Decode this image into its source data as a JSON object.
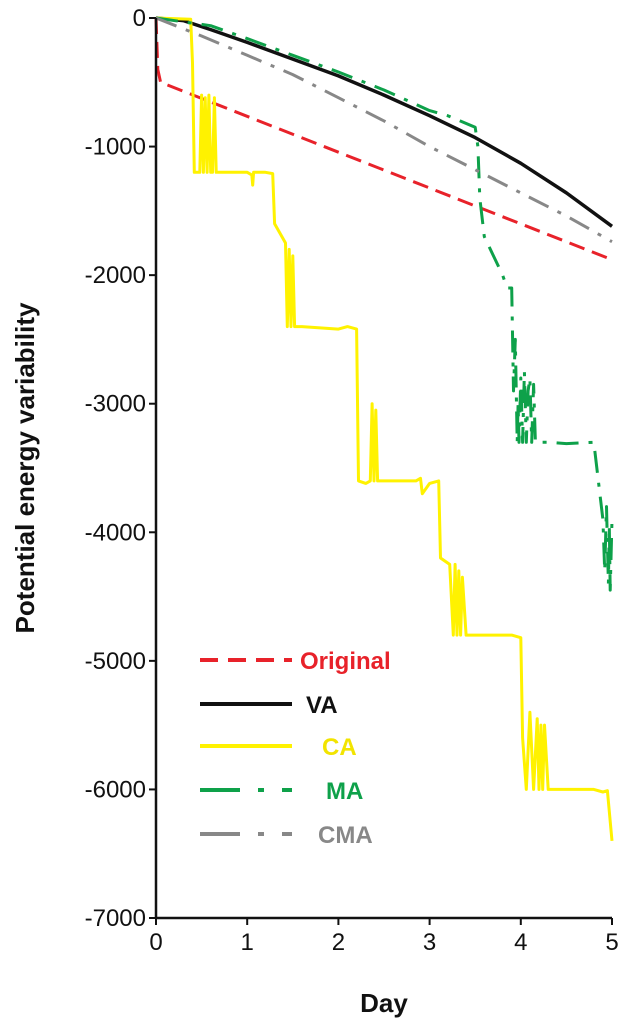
{
  "chart_data": {
    "type": "line",
    "xlabel": "Day",
    "ylabel": "Potential energy variability",
    "xlim": [
      0,
      5
    ],
    "ylim": [
      -7000,
      0
    ],
    "x_ticks": [
      "0",
      "1",
      "2",
      "3",
      "4",
      "5"
    ],
    "y_ticks": [
      "0",
      "-1000",
      "-2000",
      "-3000",
      "-4000",
      "-5000",
      "-6000",
      "-7000"
    ],
    "grid": false,
    "legend_position": "lower-left",
    "series": [
      {
        "name": "Original",
        "color": "#e8222a",
        "style": "dashed",
        "x": [
          0,
          0.02,
          0.05,
          5
        ],
        "y": [
          0,
          -400,
          -500,
          -1880
        ]
      },
      {
        "name": "VA",
        "color": "#111111",
        "style": "solid",
        "x": [
          0,
          0.3,
          0.6,
          1.0,
          1.5,
          2.0,
          2.5,
          3.0,
          3.5,
          4.0,
          4.5,
          5.0
        ],
        "y": [
          0,
          -20,
          -90,
          -190,
          -320,
          -450,
          -600,
          -760,
          -930,
          -1130,
          -1360,
          -1620
        ]
      },
      {
        "name": "CA",
        "color": "#fff200",
        "style": "solid",
        "x": [
          0,
          0.38,
          0.4,
          0.42,
          0.48,
          0.5,
          0.52,
          0.54,
          0.56,
          0.58,
          0.6,
          0.62,
          0.64,
          0.66,
          0.7,
          1.0,
          1.05,
          1.06,
          1.07,
          1.2,
          1.28,
          1.3,
          1.38,
          1.42,
          1.44,
          1.46,
          1.48,
          1.5,
          1.52,
          1.6,
          2.0,
          2.1,
          2.2,
          2.22,
          2.3,
          2.35,
          2.37,
          2.39,
          2.41,
          2.43,
          2.5,
          2.85,
          2.9,
          2.92,
          3.0,
          3.1,
          3.12,
          3.22,
          3.26,
          3.28,
          3.3,
          3.32,
          3.34,
          3.36,
          3.4,
          3.9,
          4.0,
          4.02,
          4.06,
          4.1,
          4.14,
          4.18,
          4.2,
          4.22,
          4.24,
          4.26,
          4.3,
          4.8,
          4.9,
          4.95,
          5.0
        ],
        "y": [
          0,
          -10,
          -350,
          -1200,
          -1200,
          -600,
          -1200,
          -620,
          -1200,
          -600,
          -1200,
          -1200,
          -620,
          -1200,
          -1200,
          -1200,
          -1220,
          -1300,
          -1200,
          -1200,
          -1210,
          -1600,
          -1700,
          -1750,
          -2400,
          -1800,
          -2400,
          -1850,
          -2400,
          -2400,
          -2420,
          -2400,
          -2420,
          -3600,
          -3620,
          -3600,
          -3000,
          -3600,
          -3050,
          -3600,
          -3600,
          -3600,
          -3580,
          -3700,
          -3620,
          -3600,
          -4200,
          -4250,
          -4800,
          -4250,
          -4800,
          -4300,
          -4800,
          -4350,
          -4800,
          -4800,
          -4820,
          -5600,
          -6000,
          -5400,
          -6000,
          -5450,
          -6000,
          -5500,
          -6000,
          -5500,
          -6000,
          -6000,
          -6020,
          -6010,
          -6400
        ]
      },
      {
        "name": "MA",
        "color": "#0ea14a",
        "style": "dashdot",
        "x": [
          0,
          0.6,
          1.0,
          1.5,
          2.0,
          2.5,
          3.0,
          3.2,
          3.5,
          3.53,
          3.55,
          3.6,
          3.8,
          3.85,
          3.9,
          3.92,
          3.94,
          3.96,
          3.97,
          3.98,
          4.0,
          4.02,
          4.04,
          4.06,
          4.08,
          4.1,
          4.12,
          4.14,
          4.16,
          4.18,
          4.2,
          4.3,
          4.5,
          4.8,
          4.9,
          4.92,
          4.94,
          4.96,
          4.97,
          4.98,
          5.0
        ],
        "y": [
          0,
          -60,
          -160,
          -290,
          -420,
          -560,
          -720,
          -760,
          -850,
          -1000,
          -1400,
          -1700,
          -2000,
          -2100,
          -2100,
          -2900,
          -2500,
          -3300,
          -3000,
          -3300,
          -2800,
          -3300,
          -2750,
          -3300,
          -2900,
          -2800,
          -3300,
          -2850,
          -3300,
          -3300,
          -3300,
          -3300,
          -3310,
          -3300,
          -3900,
          -4300,
          -3800,
          -4400,
          -3950,
          -4450,
          -3900
        ]
      },
      {
        "name": "CMA",
        "color": "#888888",
        "style": "dashdot",
        "x": [
          0,
          0.5,
          1.0,
          1.5,
          2.0,
          2.5,
          3.0,
          3.5,
          4.0,
          4.5,
          5.0
        ],
        "y": [
          0,
          -140,
          -290,
          -440,
          -620,
          -800,
          -1000,
          -1180,
          -1360,
          -1540,
          -1740
        ]
      }
    ]
  }
}
